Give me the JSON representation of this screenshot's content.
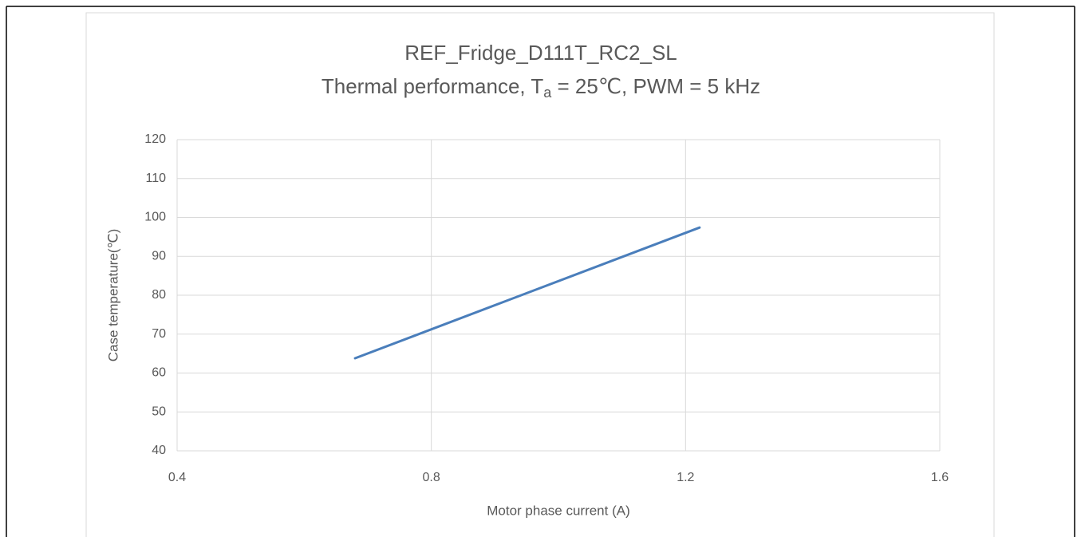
{
  "chart_data": {
    "type": "line",
    "title": "REF_Fridge_D111T_RC2_SL",
    "subtitle": [
      "Thermal performance, T",
      "a",
      " = 25℃, PWM = 5 kHz"
    ],
    "x_label": "Motor phase current (A)",
    "y_label": "Case temperature(℃)",
    "series": [
      {
        "name": "Case temperature",
        "color": "#4a7ebb",
        "x": [
          0.68,
          1.222
        ],
        "values": [
          63.8,
          97.4
        ]
      }
    ],
    "xlim": [
      0.4,
      1.6
    ],
    "xticks": [
      0.4,
      0.8,
      1.2,
      1.6
    ],
    "ylim": [
      40,
      120
    ],
    "yticks": [
      40,
      50,
      60,
      70,
      80,
      90,
      100,
      110,
      120
    ],
    "grid": true
  }
}
